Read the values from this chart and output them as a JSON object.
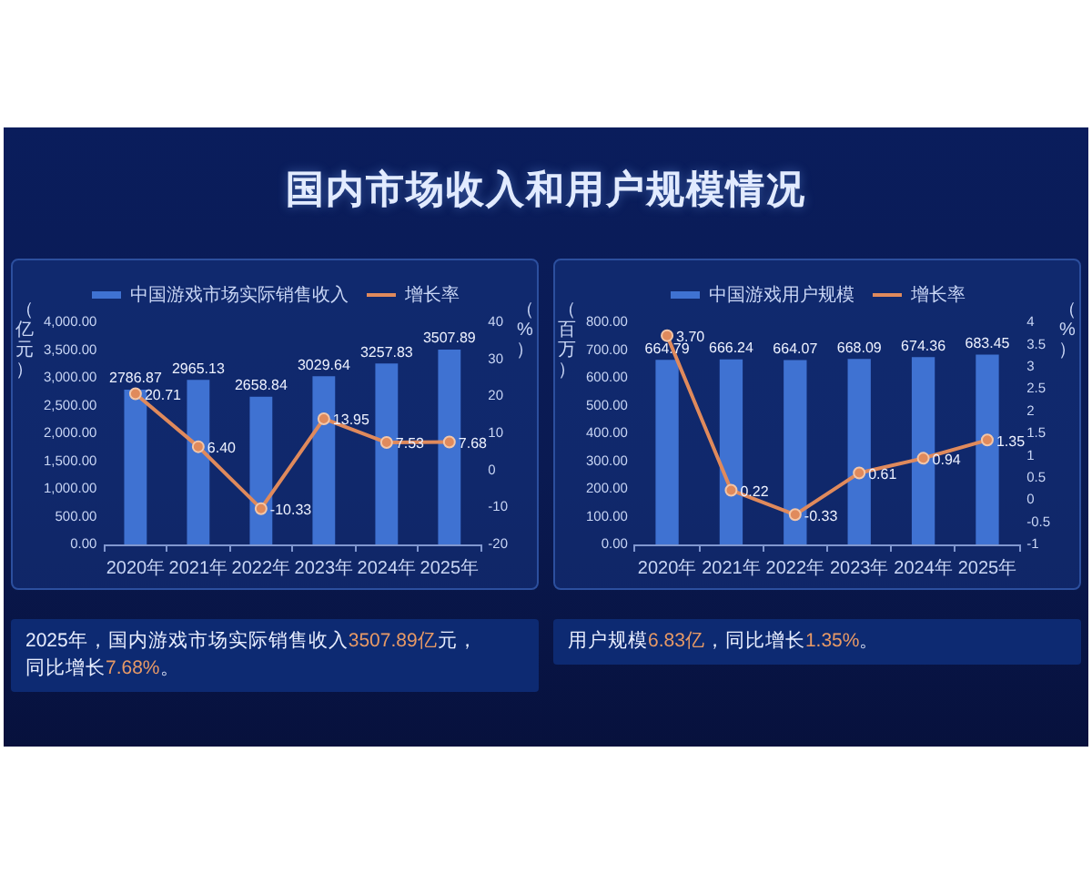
{
  "chart_data": [
    {
      "type": "other",
      "title": "国内市场收入和用户规模情况"
    },
    {
      "type": "bar",
      "categories": [
        "2020年",
        "2021年",
        "2022年",
        "2023年",
        "2024年",
        "2025年"
      ],
      "ylabel": "（亿元）",
      "y2label": "（%）",
      "ylim": [
        0,
        4000
      ],
      "yticks": [
        {
          "value": 0,
          "label": "0.00"
        },
        {
          "value": 500,
          "label": "500.00"
        },
        {
          "value": 1000,
          "label": "1,000.00"
        },
        {
          "value": 1500,
          "label": "1,500.00"
        },
        {
          "value": 2000,
          "label": "2,000.00"
        },
        {
          "value": 2500,
          "label": "2,500.00"
        },
        {
          "value": 3000,
          "label": "3,000.00"
        },
        {
          "value": 3500,
          "label": "3,500.00"
        },
        {
          "value": 4000,
          "label": "4,000.00"
        }
      ],
      "y2lim": [
        -20,
        40
      ],
      "y2ticks": [
        -20,
        -10,
        0,
        10,
        20,
        30,
        40
      ],
      "series": [
        {
          "name": "中国游戏市场实际销售收入",
          "color": "#3f72d2",
          "values": [
            2786.87,
            2965.13,
            2658.84,
            3029.64,
            3257.83,
            3507.89
          ],
          "value_labels": [
            "2786.87",
            "2965.13",
            "2658.84",
            "3029.64",
            "3257.83",
            "3507.89"
          ]
        },
        {
          "name": "增长率",
          "type": "line",
          "axis": "y2",
          "color": "#e08a5c",
          "values": [
            20.71,
            6.4,
            -10.33,
            13.95,
            7.53,
            7.68
          ],
          "value_labels": [
            "20.71",
            "6.40",
            "-10.33",
            "13.95",
            "7.53",
            "7.68"
          ]
        }
      ],
      "legend": "top",
      "grid": false,
      "marker": "circle",
      "annotations": [
        "2025年，国内游戏市场实际销售收入3507.89亿元，同比增长7.68%。"
      ]
    },
    {
      "type": "bar",
      "categories": [
        "2020年",
        "2021年",
        "2022年",
        "2023年",
        "2024年",
        "2025年"
      ],
      "ylabel": "（百万）",
      "y2label": "（%）",
      "ylim": [
        0,
        800
      ],
      "yticks": [
        {
          "value": 0,
          "label": "0.00"
        },
        {
          "value": 100,
          "label": "100.00"
        },
        {
          "value": 200,
          "label": "200.00"
        },
        {
          "value": 300,
          "label": "300.00"
        },
        {
          "value": 400,
          "label": "400.00"
        },
        {
          "value": 500,
          "label": "500.00"
        },
        {
          "value": 600,
          "label": "600.00"
        },
        {
          "value": 700,
          "label": "700.00"
        },
        {
          "value": 800,
          "label": "800.00"
        }
      ],
      "y2lim": [
        -1,
        4
      ],
      "y2ticks": [
        -1,
        -0.5,
        0,
        0.5,
        1,
        1.5,
        2,
        2.5,
        3,
        3.5,
        4
      ],
      "series": [
        {
          "name": "中国游戏用户规模",
          "color": "#3f72d2",
          "values": [
            664.79,
            666.24,
            664.07,
            668.09,
            674.36,
            683.45
          ],
          "value_labels": [
            "664.79",
            "666.24",
            "664.07",
            "668.09",
            "674.36",
            "683.45"
          ]
        },
        {
          "name": "增长率",
          "type": "line",
          "axis": "y2",
          "color": "#e08a5c",
          "values": [
            3.7,
            0.22,
            -0.33,
            0.61,
            0.94,
            1.35
          ],
          "value_labels": [
            "3.70",
            "0.22",
            "-0.33",
            "0.61",
            "0.94",
            "1.35"
          ]
        }
      ],
      "legend": "top",
      "grid": false,
      "marker": "circle",
      "annotations": [
        "用户规模6.83亿，同比增长1.35%。"
      ]
    }
  ]
}
